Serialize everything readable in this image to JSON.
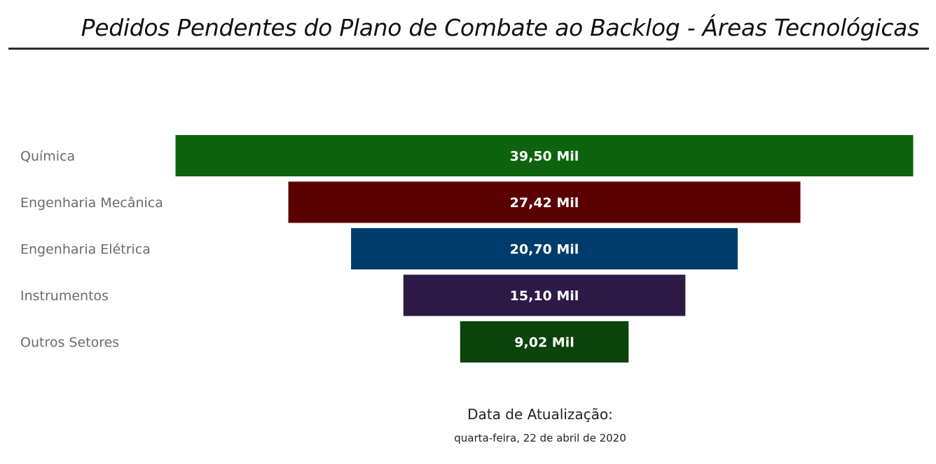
{
  "header": {
    "title": "Pedidos Pendentes do Plano de Combate ao Backlog - Áreas Tecnológicas"
  },
  "footer": {
    "label": "Data de Atualização:",
    "date": "quarta-feira, 22 de abril de 2020"
  },
  "chart_data": {
    "type": "bar",
    "subtype": "funnel",
    "categories": [
      "Química",
      "Engenharia Mecânica",
      "Engenharia Elétrica",
      "Instrumentos",
      "Outros Setores"
    ],
    "values": [
      39500,
      27420,
      20700,
      15100,
      9020
    ],
    "data_labels": [
      "39,50 Mil",
      "27,42 Mil",
      "20,70 Mil",
      "15,10 Mil",
      "9,02 Mil"
    ],
    "colors": [
      "#0e640e",
      "#5a0000",
      "#003c6b",
      "#2e1a47",
      "#0b440b"
    ],
    "label_color": "#6b6b6b",
    "data_label_color": "#ffffff"
  }
}
